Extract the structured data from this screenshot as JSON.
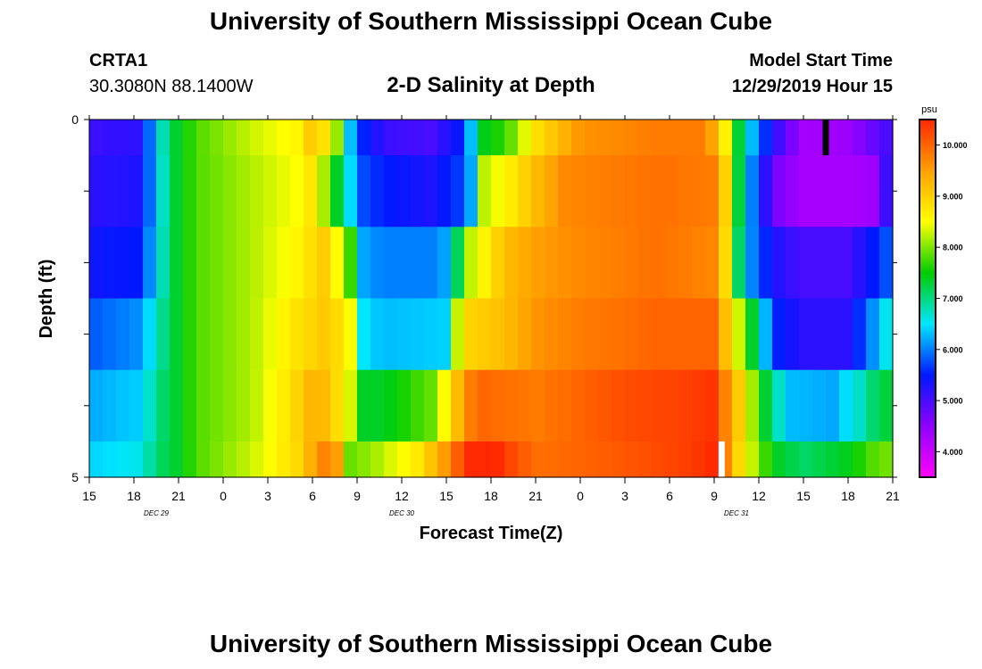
{
  "header": {
    "title": "University of Southern Mississippi Ocean Cube",
    "footer_title": "University of Southern Mississippi Ocean Cube",
    "station": "CRTA1",
    "coordinates": "30.3080N 88.1400W",
    "subtitle": "2-D Salinity at Depth",
    "model_start_label": "Model Start Time",
    "model_start_value": "12/29/2019 Hour 15"
  },
  "chart_data": {
    "type": "heatmap",
    "title": "2-D Salinity at Depth",
    "xlabel": "Forecast Time(Z)",
    "ylabel": "Depth (ft)",
    "x_hours": [
      0,
      3,
      6,
      9,
      12,
      15,
      18,
      21,
      24,
      27,
      30,
      33,
      36,
      39,
      42,
      45,
      48,
      51,
      54
    ],
    "x_tick_labels": [
      "15",
      "18",
      "21",
      "0",
      "3",
      "6",
      "9",
      "12",
      "15",
      "18",
      "21",
      "0",
      "3",
      "6",
      "9",
      "12",
      "15",
      "18",
      "21"
    ],
    "date_labels": [
      {
        "text": "DEC 29",
        "hour": 4.5
      },
      {
        "text": "DEC 30",
        "hour": 21
      },
      {
        "text": "DEC 31",
        "hour": 43.5
      }
    ],
    "y_tick_labels": [
      {
        "value": 0,
        "label": "0"
      },
      {
        "value": 5,
        "label": "5"
      }
    ],
    "ylim": [
      0,
      5
    ],
    "depth_layers": 5,
    "colorbar": {
      "unit": "psu",
      "min": 3.5,
      "max": 10.5,
      "tick_values": [
        4,
        5,
        6,
        7,
        8,
        9,
        10
      ],
      "tick_labels": [
        "4.000",
        "5.000",
        "6.000",
        "7.000",
        "8.000",
        "9.000",
        "10.000"
      ]
    },
    "hour_step": 0.9,
    "rows": [
      {
        "depth_top": 0,
        "depth_bottom": 0.5,
        "keyframes": [
          [
            0,
            5.1
          ],
          [
            3.5,
            5.2
          ],
          [
            4.6,
            6.6
          ],
          [
            5.8,
            7.3
          ],
          [
            7.2,
            7.8
          ],
          [
            11,
            8.3
          ],
          [
            14,
            8.6
          ],
          [
            15,
            9.1
          ],
          [
            16.5,
            8.5
          ],
          [
            17.2,
            6.6
          ],
          [
            18.5,
            5.5
          ],
          [
            20,
            5.1
          ],
          [
            23,
            5.0
          ],
          [
            25.4,
            5.6
          ],
          [
            26,
            7.3
          ],
          [
            28,
            7.7
          ],
          [
            30,
            8.8
          ],
          [
            33,
            9.6
          ],
          [
            36,
            9.7
          ],
          [
            38,
            9.8
          ],
          [
            41.5,
            9.8
          ],
          [
            43,
            8.4
          ],
          [
            44,
            6.7
          ],
          [
            46,
            5.2
          ],
          [
            48,
            4.3
          ],
          [
            51,
            4.4
          ],
          [
            54,
            5.1
          ]
        ]
      },
      {
        "depth_top": 0.5,
        "depth_bottom": 1.5,
        "keyframes": [
          [
            0,
            5.2
          ],
          [
            3.5,
            5.3
          ],
          [
            4.6,
            6.5
          ],
          [
            5.8,
            7.3
          ],
          [
            7.2,
            7.8
          ],
          [
            11,
            8.2
          ],
          [
            14,
            8.5
          ],
          [
            15,
            8.8
          ],
          [
            16.5,
            7.5
          ],
          [
            17.6,
            6.4
          ],
          [
            18.5,
            5.7
          ],
          [
            20,
            5.5
          ],
          [
            23,
            5.3
          ],
          [
            25.5,
            5.8
          ],
          [
            26.4,
            8.2
          ],
          [
            28,
            8.6
          ],
          [
            30,
            9.2
          ],
          [
            32,
            9.7
          ],
          [
            35,
            9.8
          ],
          [
            38,
            9.9
          ],
          [
            42,
            9.8
          ],
          [
            43,
            8.7
          ],
          [
            44,
            6.5
          ],
          [
            46,
            4.7
          ],
          [
            48,
            4.3
          ],
          [
            51,
            4.3
          ],
          [
            53.3,
            4.4
          ],
          [
            54,
            6.3
          ]
        ]
      },
      {
        "depth_top": 1.5,
        "depth_bottom": 2.5,
        "keyframes": [
          [
            0,
            5.4
          ],
          [
            3.5,
            5.5
          ],
          [
            4.6,
            6.6
          ],
          [
            5.8,
            7.3
          ],
          [
            7.2,
            7.8
          ],
          [
            11,
            8.2
          ],
          [
            14,
            8.6
          ],
          [
            16,
            9.1
          ],
          [
            17.5,
            7.8
          ],
          [
            18.5,
            6.1
          ],
          [
            20,
            6.0
          ],
          [
            23,
            6.0
          ],
          [
            24.5,
            6.3
          ],
          [
            25,
            8.0
          ],
          [
            28,
            9.2
          ],
          [
            30,
            9.5
          ],
          [
            33,
            9.7
          ],
          [
            36,
            9.8
          ],
          [
            38,
            9.9
          ],
          [
            42,
            9.7
          ],
          [
            43,
            8.6
          ],
          [
            44,
            6.3
          ],
          [
            46,
            5.3
          ],
          [
            48,
            5.0
          ],
          [
            51,
            5.0
          ],
          [
            54,
            5.9
          ]
        ]
      },
      {
        "depth_top": 2.5,
        "depth_bottom": 3.5,
        "keyframes": [
          [
            0,
            5.8
          ],
          [
            3.5,
            6.1
          ],
          [
            4.6,
            6.8
          ],
          [
            5.8,
            7.3
          ],
          [
            7.2,
            7.8
          ],
          [
            11,
            8.2
          ],
          [
            14,
            8.8
          ],
          [
            16,
            9.1
          ],
          [
            17.5,
            8.6
          ],
          [
            18.5,
            6.4
          ],
          [
            20,
            6.3
          ],
          [
            24,
            6.4
          ],
          [
            25,
            8.9
          ],
          [
            28,
            9.2
          ],
          [
            30,
            9.6
          ],
          [
            33,
            9.8
          ],
          [
            36,
            9.9
          ],
          [
            38,
            10.0
          ],
          [
            42,
            10.0
          ],
          [
            43,
            8.9
          ],
          [
            44,
            8.0
          ],
          [
            45,
            6.8
          ],
          [
            46,
            5.6
          ],
          [
            48,
            5.2
          ],
          [
            51,
            5.2
          ],
          [
            54,
            6.8
          ]
        ]
      },
      {
        "depth_top": 3.5,
        "depth_bottom": 4.5,
        "keyframes": [
          [
            0,
            6.2
          ],
          [
            3.5,
            6.4
          ],
          [
            4.6,
            7.0
          ],
          [
            5.8,
            7.3
          ],
          [
            7.2,
            7.8
          ],
          [
            11,
            8.2
          ],
          [
            13.5,
            8.8
          ],
          [
            15,
            9.3
          ],
          [
            16,
            9.2
          ],
          [
            17.5,
            8.4
          ],
          [
            18.5,
            7.3
          ],
          [
            20,
            7.4
          ],
          [
            23,
            7.9
          ],
          [
            25,
            9.4
          ],
          [
            26,
            10.0
          ],
          [
            28,
            9.9
          ],
          [
            30,
            9.8
          ],
          [
            33,
            10.0
          ],
          [
            36,
            10.2
          ],
          [
            40,
            10.3
          ],
          [
            42,
            10.4
          ],
          [
            43,
            9.5
          ],
          [
            44,
            8.8
          ],
          [
            45,
            7.6
          ],
          [
            47,
            6.3
          ],
          [
            50,
            6.2
          ],
          [
            52,
            6.8
          ],
          [
            53,
            7.2
          ],
          [
            54,
            7.3
          ]
        ]
      },
      {
        "depth_top": 4.5,
        "depth_bottom": 5.0,
        "keyframes": [
          [
            0,
            6.4
          ],
          [
            3.5,
            6.6
          ],
          [
            4.6,
            7.1
          ],
          [
            5.8,
            7.3
          ],
          [
            7.2,
            7.8
          ],
          [
            11,
            8.3
          ],
          [
            14,
            8.9
          ],
          [
            15,
            9.4
          ],
          [
            15.5,
            9.7
          ],
          [
            16.5,
            9.8
          ],
          [
            17.5,
            7.9
          ],
          [
            19,
            8.1
          ],
          [
            22,
            8.7
          ],
          [
            24,
            9.6
          ],
          [
            25.5,
            10.5
          ],
          [
            27,
            10.6
          ],
          [
            28.5,
            10.2
          ],
          [
            30,
            9.9
          ],
          [
            33,
            10.0
          ],
          [
            36,
            10.1
          ],
          [
            40,
            10.3
          ],
          [
            42,
            10.5
          ],
          [
            43,
            9.5
          ],
          [
            44,
            8.6
          ],
          [
            46,
            7.4
          ],
          [
            48,
            7.1
          ],
          [
            51,
            7.4
          ],
          [
            52.5,
            7.8
          ],
          [
            54,
            8.0
          ]
        ]
      }
    ],
    "markers": [
      {
        "color": "#000000",
        "hour": 49.5,
        "depth_top": 0,
        "depth_bottom": 0.5
      },
      {
        "color": "#ffffff",
        "hour": 42.5,
        "depth_top": 4.5,
        "depth_bottom": 5.0
      }
    ]
  }
}
